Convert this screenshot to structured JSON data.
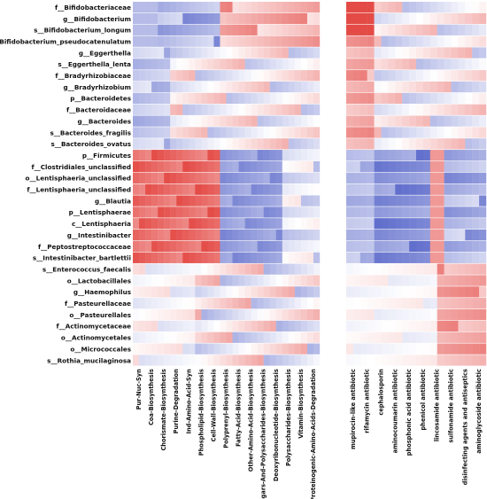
{
  "chart_data": {
    "type": "heatmap",
    "panels": [
      "left",
      "right"
    ],
    "rows": [
      "f__Bifidobacteriaceae",
      "g__Bifidobacterium",
      "s__Bifidobacterium_longum",
      "s__Bifidobacterium_pseudocatenulatum",
      "g__Eggerthella",
      "s__Eggerthella_lenta",
      "f__Bradyrhizobiaceae",
      "g__Bradyrhizobium",
      "p__Bacteroidetes",
      "f__Bacteroidaceae",
      "g__Bacteroides",
      "s__Bacteroides_fragilis",
      "s__Bacteroides_ovatus",
      "p__Firmicutes",
      "f__Clostridiales_unclassified",
      "o__Lentisphaeria_unclassified",
      "f__Lentisphaeria_unclassified",
      "g__Blautia",
      "p__Lentisphaerae",
      "c__Lentisphaeria",
      "g__Intestinibacter",
      "f__Peptostreptococcaceae",
      "s__Intestinibacter_bartlettii",
      "s__Enterococcus_faecalis",
      "o__Lactobacillales",
      "g__Haemophilus",
      "f__Pasteurellaceae",
      "o__Pasteurellales",
      "f__Actinomycetaceae",
      "o__Actinomycetales",
      "o__Micrococcales",
      "s__Rothia_mucilaginosa"
    ],
    "columns_left": [
      "Pur-Nuc-Syn",
      "Coa-Biosynthesis",
      "Chorismate-Biosynthesis",
      "Purine-Degradation",
      "Ind-Amino-Acid-Syn",
      "Phospholipid-Biosynthesis",
      "Cell-Wall-Biosynthesis",
      "Polyprenyl-Biosynthesis",
      "Fatty-Acid-Biosynthesis",
      "Other-Amino-Acid-Biosynthesis",
      "Sugars-And-Polysaccharides-Biosynthesis",
      "Deoxyribonucleotide-Biosynthesis",
      "Polysaccharides-Biosynthesis",
      "Vitamin-Biosynthesis",
      "Proteinogenic-Amino-Acids-Degradation"
    ],
    "columns_right": [
      "mupirocin-like antibiotic",
      "rifamycin antibiotic",
      "cephalosporin",
      "aminocoumarin antibiotic",
      "phosphonic acid antibiotic",
      "phenicol antibiotic",
      "lincosamide antibiotic",
      "sulfonamide antibiotic",
      "disinfecting agents and antiseptics",
      "aminoglycoside antibiotic"
    ],
    "subcols_per_column": 2,
    "color_scale": {
      "negative": "#3b4cc0",
      "zero": "#ffffff",
      "positive": "#e0312c",
      "range": [
        -0.8,
        0.8
      ]
    },
    "cell_values_printed": true,
    "significance_marks": [
      "*",
      "**",
      "***"
    ]
  }
}
